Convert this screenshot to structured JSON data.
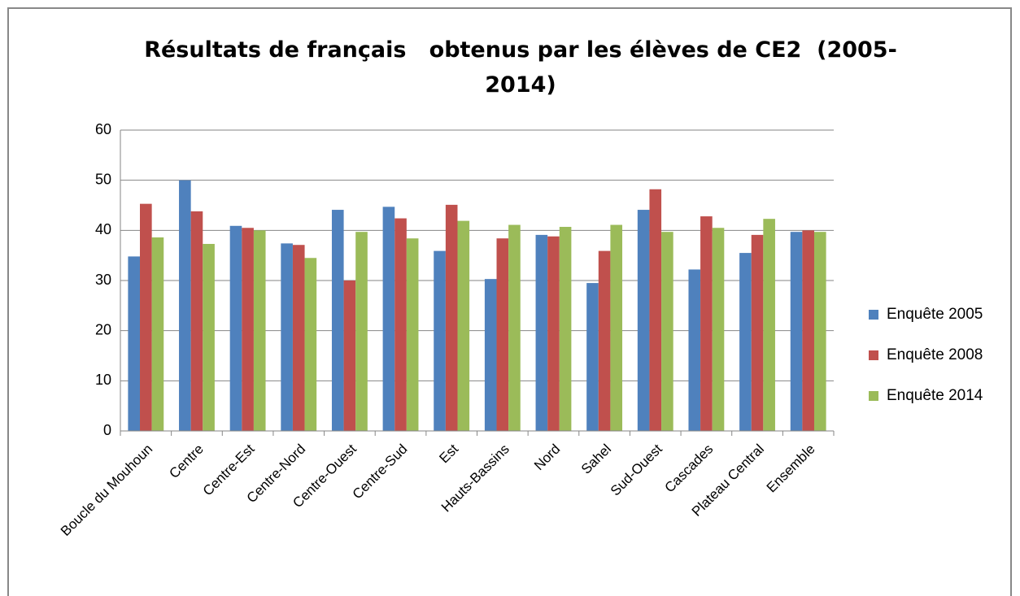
{
  "chart_data": {
    "type": "bar",
    "title": "Résultats de français   obtenus par les élèves de CE2  (2005-2014)",
    "categories": [
      "Boucle du Mouhoun",
      "Centre",
      "Centre-Est",
      "Centre-Nord",
      "Centre-Ouest",
      "Centre-Sud",
      "Est",
      "Hauts-Bassins",
      "Nord",
      "Sahel",
      "Sud-Ouest",
      "Cascades",
      "Plateau Central",
      "Ensemble"
    ],
    "series": [
      {
        "name": "Enquête 2005",
        "color": "#4f81bd",
        "values": [
          34.8,
          50,
          40.9,
          37.4,
          44.1,
          44.7,
          35.9,
          30.3,
          39.1,
          29.5,
          44.1,
          32.2,
          35.5,
          39.7
        ]
      },
      {
        "name": "Enquête 2008",
        "color": "#c0504d",
        "values": [
          45.3,
          43.8,
          40.5,
          37.1,
          30,
          42.4,
          45.1,
          38.4,
          38.8,
          35.9,
          48.2,
          42.8,
          39.1,
          40
        ]
      },
      {
        "name": "Enquête 2014",
        "color": "#9bbb59",
        "values": [
          38.6,
          37.3,
          40,
          34.5,
          39.7,
          38.4,
          41.9,
          41.1,
          40.7,
          41.1,
          39.7,
          40.5,
          42.3,
          39.7
        ]
      }
    ],
    "ylim": [
      0,
      60
    ],
    "yticks": [
      0,
      10,
      20,
      30,
      40,
      50,
      60
    ],
    "grid": true,
    "legend": "right"
  }
}
